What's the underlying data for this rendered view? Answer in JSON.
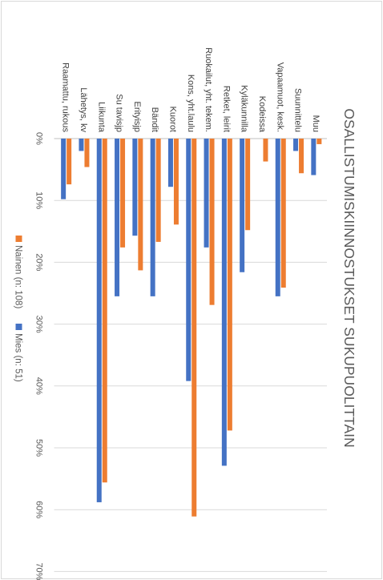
{
  "chart_data": {
    "type": "bar",
    "orientation": "horizontal",
    "rotation": "90deg clockwise",
    "title": "OSALLISTUMISKIINNOSTUKSET SUKUPUOLITTAIN",
    "categories": [
      "Raamattu, rukous",
      "Lähetys, kv",
      "Liikunta",
      "Su tavisjp",
      "Erityisjp",
      "Bändit",
      "Kuorot",
      "Kons, yht.laulu",
      "Ruokailut, yht. tekem.",
      "Retket, leirit",
      "Kyläkunnilla",
      "Kodeissa",
      "Vapaamuot, kesk.",
      "Suunnittelu",
      "Muu"
    ],
    "series": [
      {
        "name": "Nainen (n: 108)",
        "color": "#ed7d31",
        "values": [
          7.4,
          4.6,
          55.6,
          17.6,
          21.3,
          16.7,
          13.9,
          61.1,
          26.9,
          47.2,
          14.8,
          3.7,
          24.1,
          5.6,
          0.9
        ]
      },
      {
        "name": "Mies (n: 51)",
        "color": "#4472c4",
        "values": [
          9.8,
          2.0,
          58.8,
          25.5,
          15.7,
          25.5,
          7.8,
          39.2,
          17.6,
          52.9,
          21.6,
          0.0,
          25.5,
          2.0,
          5.9
        ]
      }
    ],
    "value_axis": {
      "min": 0,
      "max": 70,
      "step": 10,
      "tick_labels": [
        "0%",
        "10%",
        "20%",
        "30%",
        "40%",
        "50%",
        "60%",
        "70%"
      ]
    },
    "grid": true,
    "legend_position": "left"
  }
}
